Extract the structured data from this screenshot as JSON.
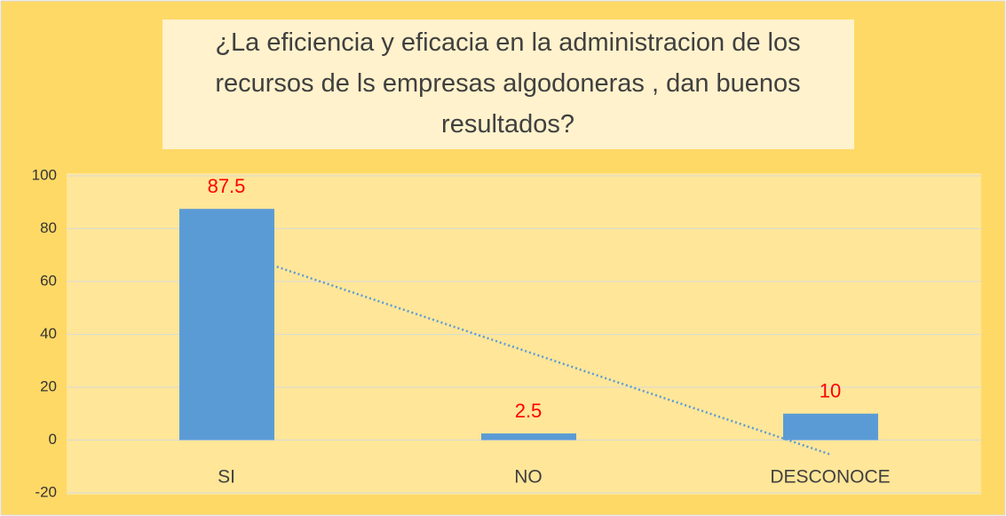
{
  "chart_data": {
    "type": "bar",
    "title": "¿La eficiencia y eficacia en la administracion de los recursos de ls empresas algodoneras , dan buenos resultados?",
    "categories": [
      "SI",
      "NO",
      "DESCONOCE"
    ],
    "values": [
      87.5,
      2.5,
      10
    ],
    "color": "#5b9bd5",
    "label_color": "#ff0000",
    "trendline": "linear",
    "trendline_color": "#5b9bd5",
    "ylim": [
      -20,
      100
    ],
    "yticks": [
      -20,
      0,
      20,
      40,
      60,
      80,
      100
    ],
    "grid": true
  }
}
